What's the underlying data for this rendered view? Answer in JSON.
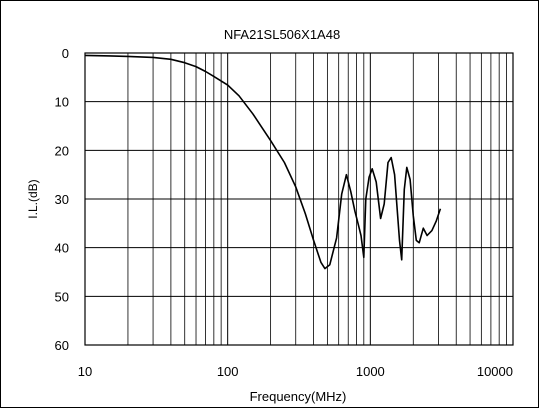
{
  "chart_data": {
    "type": "line",
    "title": "NFA21SL506X1A48",
    "xlabel": "Frequency(MHz)",
    "ylabel": "I.L.(dB)",
    "x_scale": "log",
    "xlim": [
      10,
      10000
    ],
    "ylim": [
      0,
      60
    ],
    "y_inverted": true,
    "grid": true,
    "x_ticks": [
      10,
      100,
      1000,
      10000
    ],
    "x_tick_labels": [
      "10",
      "100",
      "1000",
      "10000"
    ],
    "y_ticks": [
      0,
      10,
      20,
      30,
      40,
      50,
      60
    ],
    "y_tick_labels": [
      "0",
      "10",
      "20",
      "30",
      "40",
      "50",
      "60"
    ],
    "series": [
      {
        "color": "#000000",
        "points": [
          [
            10,
            0.5
          ],
          [
            15,
            0.6
          ],
          [
            20,
            0.7
          ],
          [
            30,
            0.9
          ],
          [
            40,
            1.3
          ],
          [
            50,
            2.0
          ],
          [
            60,
            2.8
          ],
          [
            70,
            3.8
          ],
          [
            80,
            4.8
          ],
          [
            100,
            6.6
          ],
          [
            120,
            8.8
          ],
          [
            150,
            12.5
          ],
          [
            200,
            18.0
          ],
          [
            250,
            22.5
          ],
          [
            300,
            27.5
          ],
          [
            350,
            33.0
          ],
          [
            400,
            38.5
          ],
          [
            450,
            43.0
          ],
          [
            480,
            44.3
          ],
          [
            520,
            43.5
          ],
          [
            580,
            38.0
          ],
          [
            630,
            29.0
          ],
          [
            680,
            25.0
          ],
          [
            730,
            28.5
          ],
          [
            780,
            32.5
          ],
          [
            820,
            35.0
          ],
          [
            860,
            37.5
          ],
          [
            900,
            42.0
          ],
          [
            930,
            30.0
          ],
          [
            980,
            25.5
          ],
          [
            1030,
            23.8
          ],
          [
            1100,
            26.5
          ],
          [
            1180,
            34.0
          ],
          [
            1250,
            31.0
          ],
          [
            1330,
            22.5
          ],
          [
            1400,
            21.5
          ],
          [
            1480,
            25.0
          ],
          [
            1550,
            33.0
          ],
          [
            1600,
            38.5
          ],
          [
            1660,
            42.5
          ],
          [
            1730,
            28.0
          ],
          [
            1800,
            23.5
          ],
          [
            1900,
            26.0
          ],
          [
            2000,
            33.5
          ],
          [
            2100,
            38.5
          ],
          [
            2200,
            39.0
          ],
          [
            2350,
            36.0
          ],
          [
            2500,
            37.5
          ],
          [
            2700,
            36.5
          ],
          [
            2900,
            34.5
          ],
          [
            3100,
            32.0
          ]
        ]
      }
    ]
  }
}
